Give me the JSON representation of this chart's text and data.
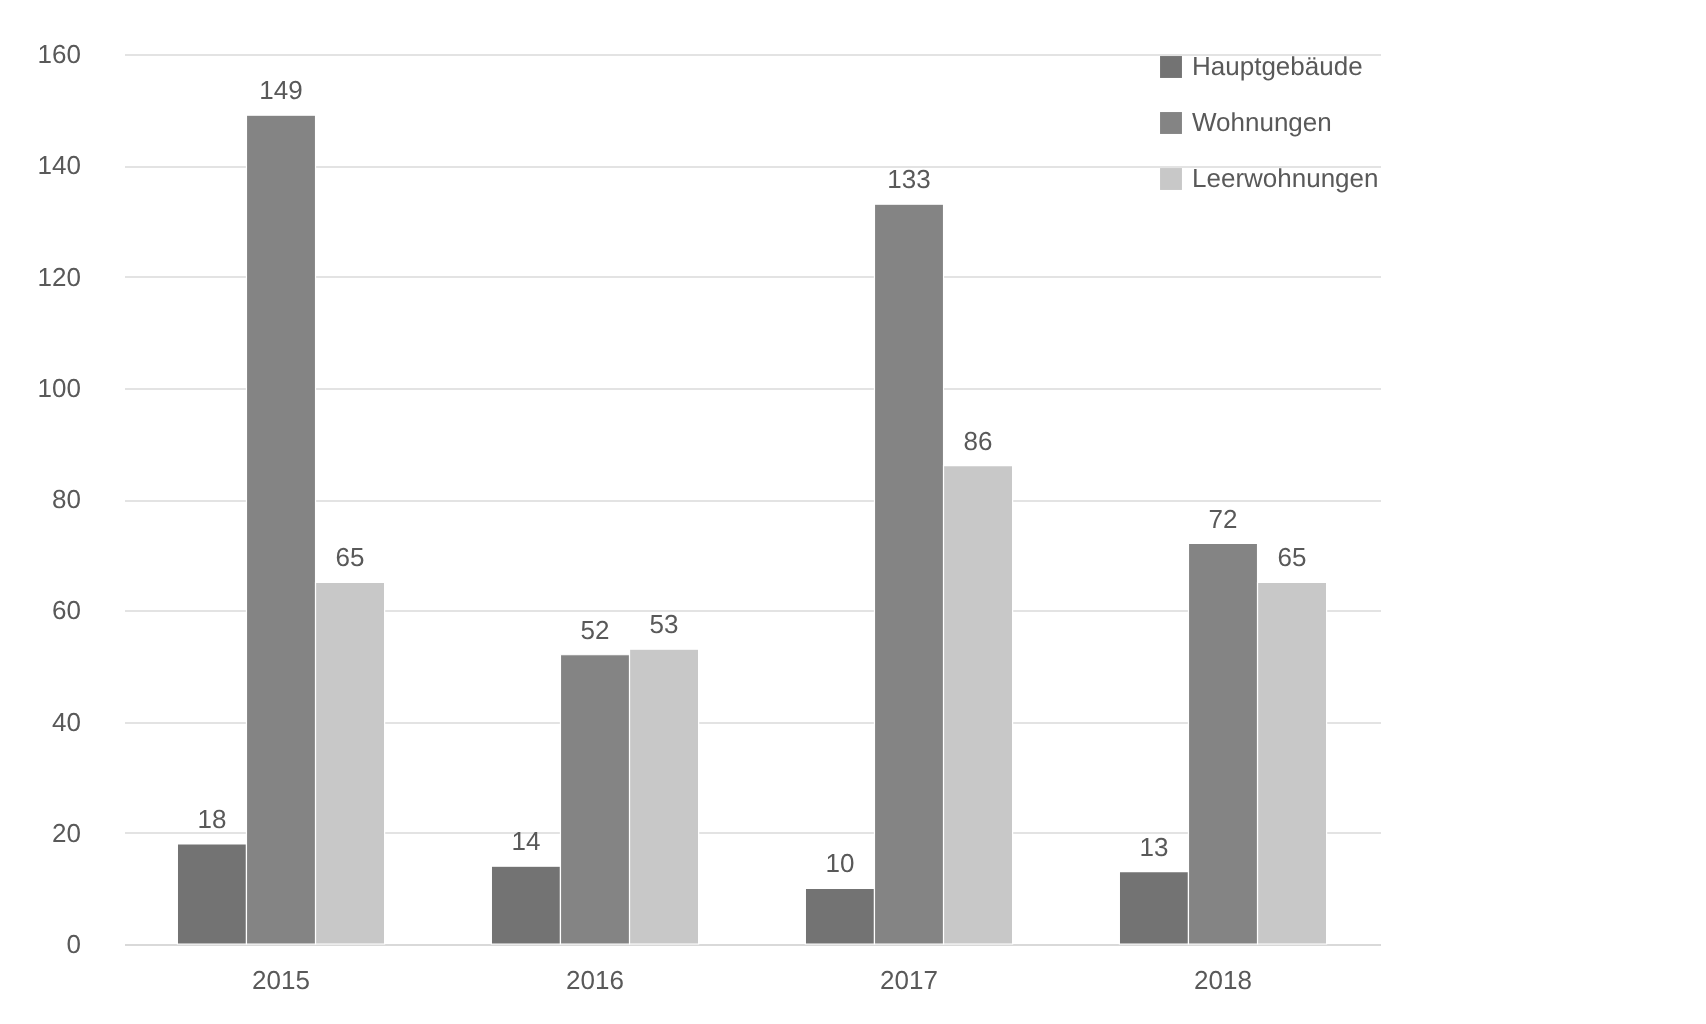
{
  "chart_data": {
    "type": "bar",
    "categories": [
      "2015",
      "2016",
      "2017",
      "2018"
    ],
    "series": [
      {
        "name": "Hauptgebäude",
        "color": "#737373",
        "values": [
          18,
          14,
          10,
          13
        ]
      },
      {
        "name": "Wohnungen",
        "color": "#848484",
        "values": [
          149,
          52,
          133,
          72
        ]
      },
      {
        "name": "Leerwohnungen",
        "color": "#c8c8c8",
        "values": [
          65,
          53,
          86,
          65
        ]
      }
    ],
    "ylim": [
      0,
      160
    ],
    "yticks": [
      0,
      20,
      40,
      60,
      80,
      100,
      120,
      140,
      160
    ],
    "grid": "y",
    "legend": "top right",
    "data_labels": true
  }
}
